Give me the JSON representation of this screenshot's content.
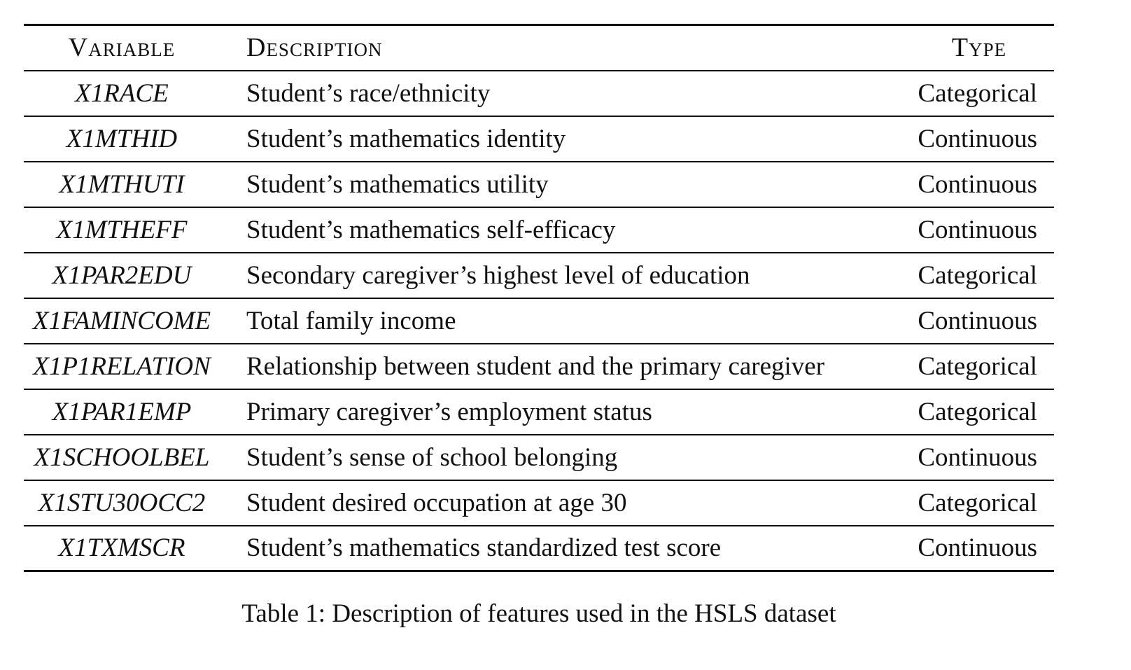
{
  "table": {
    "headers": {
      "variable": "Variable",
      "description": "Description",
      "type": "Type"
    },
    "rows": [
      {
        "variable": "X1RACE",
        "description": "Student’s race/ethnicity",
        "type": "Categorical"
      },
      {
        "variable": "X1MTHID",
        "description": "Student’s mathematics identity",
        "type": "Continuous"
      },
      {
        "variable": "X1MTHUTI",
        "description": "Student’s mathematics utility",
        "type": "Continuous"
      },
      {
        "variable": "X1MTHEFF",
        "description": "Student’s mathematics self-efficacy",
        "type": "Continuous"
      },
      {
        "variable": "X1PAR2EDU",
        "description": "Secondary caregiver’s highest level of education",
        "type": "Categorical"
      },
      {
        "variable": "X1FAMINCOME",
        "description": "Total family income",
        "type": "Continuous"
      },
      {
        "variable": "X1P1RELATION",
        "description": "Relationship between student and the primary caregiver",
        "type": "Categorical"
      },
      {
        "variable": "X1PAR1EMP",
        "description": "Primary caregiver’s employment status",
        "type": "Categorical"
      },
      {
        "variable": "X1SCHOOLBEL",
        "description": "Student’s sense of school belonging",
        "type": "Continuous"
      },
      {
        "variable": "X1STU30OCC2",
        "description": "Student desired occupation at age 30",
        "type": "Categorical"
      },
      {
        "variable": "X1TXMSCR",
        "description": "Student’s mathematics standardized test score",
        "type": "Continuous"
      }
    ]
  },
  "caption": "Table 1: Description of features used in the HSLS dataset"
}
